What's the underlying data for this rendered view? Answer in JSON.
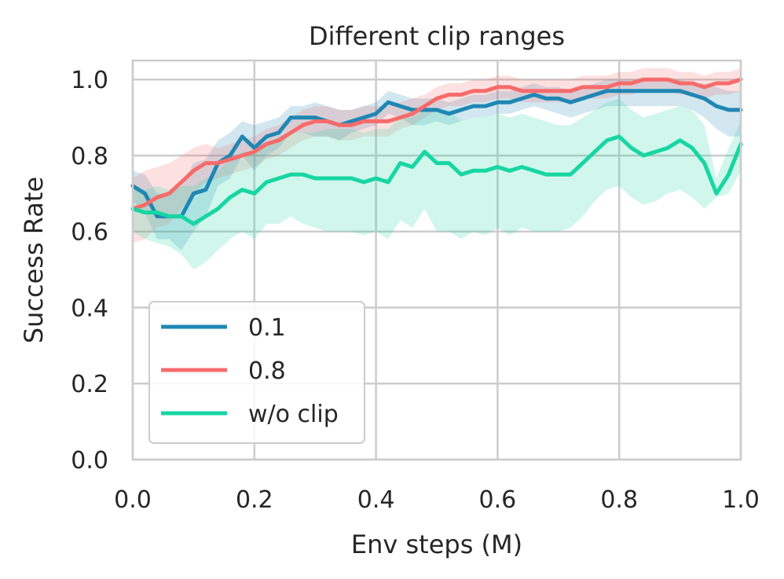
{
  "chart_data": {
    "type": "line",
    "title": "Different clip ranges",
    "xlabel": "Env steps (M)",
    "ylabel": "Success Rate",
    "xlim": [
      0.0,
      1.0
    ],
    "ylim": [
      0.0,
      1.05
    ],
    "xticks": [
      "0.0",
      "0.2",
      "0.4",
      "0.6",
      "0.8",
      "1.0"
    ],
    "yticks": [
      "0.0",
      "0.2",
      "0.4",
      "0.6",
      "0.8",
      "1.0"
    ],
    "grid": true,
    "legend_position": "lower-left",
    "x": [
      0.0,
      0.02,
      0.04,
      0.06,
      0.08,
      0.1,
      0.12,
      0.14,
      0.16,
      0.18,
      0.2,
      0.22,
      0.24,
      0.26,
      0.28,
      0.3,
      0.32,
      0.34,
      0.36,
      0.38,
      0.4,
      0.42,
      0.44,
      0.46,
      0.48,
      0.5,
      0.52,
      0.54,
      0.56,
      0.58,
      0.6,
      0.62,
      0.64,
      0.66,
      0.68,
      0.7,
      0.72,
      0.74,
      0.76,
      0.78,
      0.8,
      0.82,
      0.84,
      0.86,
      0.88,
      0.9,
      0.92,
      0.94,
      0.96,
      0.98,
      1.0
    ],
    "series": [
      {
        "name": "0.1",
        "color": "#1f87b4",
        "values": [
          0.72,
          0.7,
          0.64,
          0.64,
          0.64,
          0.7,
          0.71,
          0.78,
          0.8,
          0.85,
          0.82,
          0.85,
          0.86,
          0.9,
          0.9,
          0.9,
          0.89,
          0.88,
          0.89,
          0.9,
          0.91,
          0.94,
          0.93,
          0.92,
          0.92,
          0.92,
          0.91,
          0.92,
          0.93,
          0.93,
          0.94,
          0.94,
          0.95,
          0.96,
          0.95,
          0.95,
          0.94,
          0.95,
          0.96,
          0.97,
          0.97,
          0.97,
          0.97,
          0.97,
          0.97,
          0.97,
          0.96,
          0.95,
          0.93,
          0.92,
          0.92
        ],
        "lower": [
          0.68,
          0.65,
          0.58,
          0.58,
          0.55,
          0.6,
          0.64,
          0.72,
          0.74,
          0.8,
          0.76,
          0.8,
          0.82,
          0.86,
          0.86,
          0.85,
          0.85,
          0.84,
          0.86,
          0.87,
          0.88,
          0.91,
          0.9,
          0.88,
          0.88,
          0.89,
          0.88,
          0.89,
          0.9,
          0.9,
          0.91,
          0.91,
          0.92,
          0.93,
          0.92,
          0.91,
          0.9,
          0.91,
          0.92,
          0.93,
          0.93,
          0.93,
          0.93,
          0.93,
          0.93,
          0.93,
          0.92,
          0.9,
          0.87,
          0.85,
          0.85
        ],
        "upper": [
          0.76,
          0.75,
          0.7,
          0.7,
          0.72,
          0.78,
          0.79,
          0.84,
          0.86,
          0.89,
          0.88,
          0.89,
          0.9,
          0.93,
          0.93,
          0.94,
          0.93,
          0.92,
          0.92,
          0.93,
          0.94,
          0.97,
          0.96,
          0.95,
          0.95,
          0.95,
          0.94,
          0.95,
          0.96,
          0.96,
          0.97,
          0.97,
          0.98,
          0.99,
          0.98,
          0.98,
          0.97,
          0.98,
          0.99,
          1.0,
          1.0,
          1.0,
          1.0,
          1.0,
          1.0,
          1.0,
          0.99,
          0.99,
          0.98,
          0.97,
          0.97
        ]
      },
      {
        "name": "0.8",
        "color": "#f76b6b",
        "values": [
          0.66,
          0.67,
          0.69,
          0.7,
          0.73,
          0.76,
          0.78,
          0.78,
          0.79,
          0.8,
          0.81,
          0.83,
          0.84,
          0.86,
          0.88,
          0.89,
          0.89,
          0.88,
          0.88,
          0.89,
          0.89,
          0.89,
          0.9,
          0.91,
          0.93,
          0.95,
          0.96,
          0.96,
          0.97,
          0.97,
          0.98,
          0.98,
          0.97,
          0.97,
          0.97,
          0.97,
          0.97,
          0.98,
          0.98,
          0.98,
          0.99,
          0.99,
          1.0,
          1.0,
          1.0,
          0.99,
          0.99,
          0.98,
          0.99,
          0.99,
          1.0
        ],
        "lower": [
          0.57,
          0.58,
          0.61,
          0.62,
          0.66,
          0.7,
          0.73,
          0.74,
          0.75,
          0.76,
          0.77,
          0.79,
          0.8,
          0.82,
          0.84,
          0.85,
          0.85,
          0.84,
          0.84,
          0.85,
          0.85,
          0.85,
          0.87,
          0.88,
          0.9,
          0.92,
          0.93,
          0.93,
          0.94,
          0.94,
          0.95,
          0.95,
          0.94,
          0.94,
          0.94,
          0.94,
          0.94,
          0.95,
          0.95,
          0.95,
          0.96,
          0.96,
          0.97,
          0.97,
          0.97,
          0.96,
          0.96,
          0.95,
          0.96,
          0.96,
          0.97
        ],
        "upper": [
          0.74,
          0.76,
          0.77,
          0.78,
          0.8,
          0.82,
          0.83,
          0.82,
          0.83,
          0.84,
          0.85,
          0.87,
          0.88,
          0.9,
          0.92,
          0.93,
          0.93,
          0.92,
          0.92,
          0.93,
          0.93,
          0.93,
          0.94,
          0.95,
          0.96,
          0.98,
          0.99,
          0.99,
          1.0,
          1.0,
          1.01,
          1.01,
          1.0,
          1.0,
          1.0,
          1.0,
          1.0,
          1.01,
          1.01,
          1.01,
          1.02,
          1.02,
          1.03,
          1.03,
          1.03,
          1.02,
          1.02,
          1.01,
          1.02,
          1.02,
          1.03
        ]
      },
      {
        "name": "w/o clip",
        "color": "#17d6a2",
        "values": [
          0.66,
          0.65,
          0.65,
          0.64,
          0.64,
          0.62,
          0.64,
          0.66,
          0.69,
          0.71,
          0.7,
          0.73,
          0.74,
          0.75,
          0.75,
          0.74,
          0.74,
          0.74,
          0.74,
          0.73,
          0.74,
          0.73,
          0.78,
          0.77,
          0.81,
          0.78,
          0.78,
          0.75,
          0.76,
          0.76,
          0.77,
          0.76,
          0.77,
          0.76,
          0.75,
          0.75,
          0.75,
          0.78,
          0.81,
          0.84,
          0.85,
          0.82,
          0.8,
          0.81,
          0.82,
          0.84,
          0.82,
          0.78,
          0.7,
          0.75,
          0.83
        ],
        "lower": [
          0.6,
          0.58,
          0.57,
          0.56,
          0.54,
          0.5,
          0.52,
          0.55,
          0.58,
          0.6,
          0.58,
          0.62,
          0.62,
          0.64,
          0.62,
          0.61,
          0.6,
          0.6,
          0.6,
          0.59,
          0.6,
          0.58,
          0.63,
          0.61,
          0.66,
          0.6,
          0.6,
          0.58,
          0.6,
          0.59,
          0.61,
          0.59,
          0.61,
          0.6,
          0.6,
          0.6,
          0.61,
          0.64,
          0.68,
          0.71,
          0.72,
          0.69,
          0.67,
          0.68,
          0.7,
          0.71,
          0.69,
          0.66,
          0.69,
          0.7,
          0.76
        ],
        "upper": [
          0.71,
          0.71,
          0.72,
          0.71,
          0.72,
          0.72,
          0.74,
          0.76,
          0.79,
          0.81,
          0.81,
          0.83,
          0.85,
          0.86,
          0.86,
          0.86,
          0.87,
          0.87,
          0.87,
          0.86,
          0.87,
          0.87,
          0.9,
          0.9,
          0.92,
          0.92,
          0.92,
          0.89,
          0.9,
          0.9,
          0.91,
          0.9,
          0.91,
          0.9,
          0.89,
          0.88,
          0.88,
          0.9,
          0.92,
          0.94,
          0.95,
          0.92,
          0.9,
          0.91,
          0.92,
          0.93,
          0.92,
          0.88,
          0.74,
          0.82,
          0.89
        ]
      }
    ]
  }
}
